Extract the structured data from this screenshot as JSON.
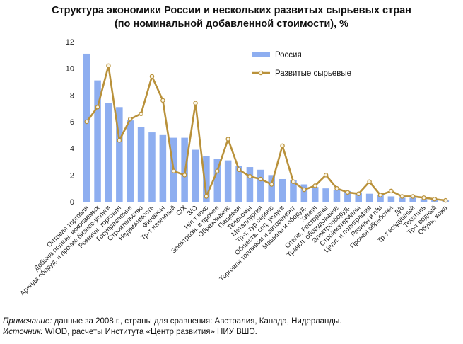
{
  "title_line1": "Структура экономики России и нескольких развитых сырьевых стран",
  "title_line2": "(по номинальной добавленной стоимости), %",
  "note_label": "Примечание:",
  "note_text": " данные за 2008 г., страны для сравнения: Австралия, Канада, Нидерланды.",
  "source_label": "Источник:",
  "source_text": " WIOD, расчеты Института «Центр развития» НИУ ВШЭ.",
  "colors": {
    "bar": "#8eaef0",
    "line": "#b9913a",
    "marker_fill": "#fbf6e6"
  },
  "chart_data": {
    "type": "bar+line",
    "title": "Структура экономики России и нескольких развитых сырьевых стран (по номинальной добавленной стоимости), %",
    "ylim": [
      0,
      12
    ],
    "yticks": [
      0,
      2,
      4,
      6,
      8,
      10,
      12
    ],
    "grid": false,
    "legend_position": "top-right",
    "categories": [
      "Оптовая торговля",
      "Добыча полезн. ископаемых",
      "Аренда оборуд. и прочие бизнес-услуги",
      "Розничн. торговля",
      "Госуправление",
      "Строительство",
      "Недвижимость",
      "Финансы",
      "Тр-т наземный",
      "С/Х",
      "З/О",
      "Н/п т кокс",
      "Электроэн. и прочее",
      "Образование",
      "Пищевая",
      "Телекомы",
      "Металлургия",
      "Тр-т, тур сервис",
      "Обществ. соц. услуги",
      "Торговля топливом и авторемонт",
      "Машины и оборуд.",
      "Химия",
      "Отели, Рестораны",
      "Трансп. оборудование",
      "Электрооборуд.",
      "Стройматериалы",
      "Целл. и полиграфия",
      "Резины и п/м",
      "Прочая обработка",
      "Д/о",
      "Тр-т воздушный",
      "Текстиль",
      "Тр-т водный",
      "Обувь, кожа"
    ],
    "series": [
      {
        "name": "Россия",
        "type": "bar",
        "values": [
          11.1,
          9.1,
          7.4,
          7.1,
          6.1,
          5.6,
          5.2,
          5.0,
          4.8,
          4.8,
          3.9,
          3.4,
          3.2,
          3.1,
          2.7,
          2.6,
          2.4,
          2.0,
          1.7,
          1.6,
          1.3,
          1.1,
          1.0,
          0.9,
          0.8,
          0.7,
          0.6,
          0.5,
          0.4,
          0.3,
          0.3,
          0.2,
          0.2,
          0.1
        ]
      },
      {
        "name": "Развитые сырьевые",
        "type": "line",
        "values": [
          6.0,
          7.1,
          10.2,
          4.6,
          6.2,
          6.6,
          9.4,
          7.6,
          2.3,
          2.0,
          7.4,
          0.4,
          2.3,
          4.7,
          2.4,
          1.9,
          1.7,
          1.3,
          4.2,
          1.5,
          0.9,
          1.2,
          2.0,
          1.0,
          0.7,
          0.6,
          1.5,
          0.5,
          0.8,
          0.4,
          0.4,
          0.3,
          0.2,
          0.1
        ]
      }
    ]
  }
}
